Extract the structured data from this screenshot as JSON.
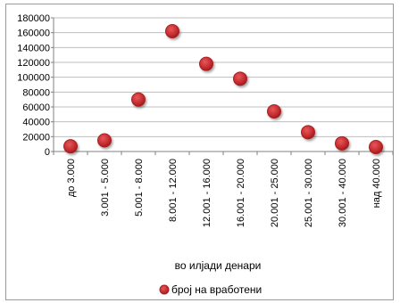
{
  "chart_data": {
    "type": "scatter",
    "categories": [
      "до 3.000",
      "3.001 - 5.000",
      "5.001 - 8.000",
      "8.001 - 12.000",
      "12.001 - 16.000",
      "16.001 - 20.000",
      "20.001 - 25.000",
      "25.001 - 30.000",
      "30.001 - 40.000",
      "над 40.000"
    ],
    "series": [
      {
        "name": "број на вработени",
        "values": [
          7000,
          15000,
          70000,
          162000,
          118000,
          98000,
          54000,
          26000,
          11000,
          6000
        ],
        "color": "#c0282b"
      }
    ],
    "title": "",
    "xlabel": "во илјади денари",
    "ylabel": "",
    "ylim": [
      0,
      180000
    ],
    "yticks": [
      "180000",
      "160000",
      "140000",
      "120000",
      "100000",
      "80000",
      "60000",
      "40000",
      "20000",
      "0"
    ],
    "grid": true,
    "legend_position": "bottom"
  }
}
